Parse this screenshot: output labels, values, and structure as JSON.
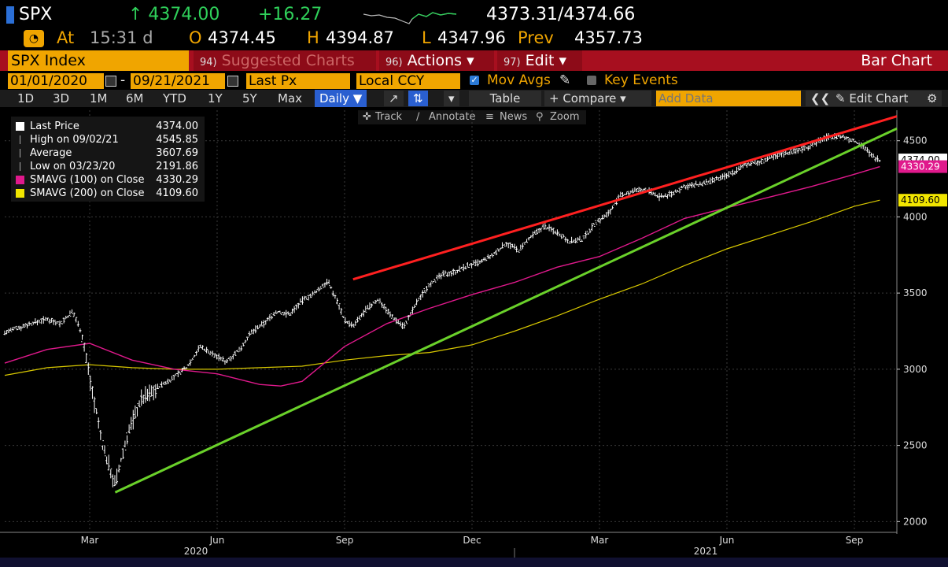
{
  "ticker": {
    "symbol": "SPX",
    "last": "↑ 4374.00",
    "change": "+16.27",
    "bid_ask": "4373.31/4374.66"
  },
  "quote": {
    "at_label": "At",
    "time": "15:31 d",
    "open_label": "O",
    "open": "4374.45",
    "high_label": "H",
    "high": "4394.87",
    "low_label": "L",
    "low": "4347.96",
    "prev_label": "Prev",
    "prev": "4357.73"
  },
  "menu": {
    "index": "SPX Index",
    "suggested_num": "94)",
    "suggested": "Suggested Charts",
    "actions_num": "96)",
    "actions": "Actions ▾",
    "edit_num": "97)",
    "edit": "Edit ▾",
    "title": "Bar Chart"
  },
  "settings": {
    "start_date": "01/01/2020",
    "dash": "-",
    "end_date": "09/21/2021",
    "field": "Last Px",
    "currency": "Local CCY",
    "mov_avgs": "Mov Avgs",
    "key_events": "Key Events"
  },
  "toolbar": {
    "periods": [
      "1D",
      "3D",
      "1M",
      "6M",
      "YTD",
      "1Y",
      "5Y",
      "Max"
    ],
    "frequency": "Daily ▼",
    "table": "Table",
    "compare": "+ Compare ▾",
    "add_data_placeholder": "Add Data",
    "edit_chart": "Edit Chart"
  },
  "tools": {
    "track": "Track",
    "annotate": "Annotate",
    "news": "News",
    "zoom": "Zoom"
  },
  "legend": [
    {
      "name": "Last Price",
      "value": "4374.00",
      "color": "#ffffff"
    },
    {
      "name": "High on 09/02/21",
      "value": "4545.85",
      "color": "#aaaaaa"
    },
    {
      "name": "Average",
      "value": "3607.69",
      "color": "#aaaaaa"
    },
    {
      "name": "Low on 03/23/20",
      "value": "2191.86",
      "color": "#aaaaaa"
    },
    {
      "name": "SMAVG (100)  on Close",
      "value": "4330.29",
      "color": "#e0198c"
    },
    {
      "name": "SMAVG (200)  on Close",
      "value": "4109.60",
      "color": "#f2e600"
    }
  ],
  "chart_data": {
    "type": "bar",
    "y_ticks": [
      2000,
      2500,
      3000,
      3500,
      4000,
      4500
    ],
    "y_tick_labels": [
      "2000",
      "2500",
      "3000",
      "3500",
      "4000",
      "4500"
    ],
    "ylim": [
      1950,
      4700
    ],
    "x_month_labels": [
      "Mar",
      "Jun",
      "Sep",
      "Dec",
      "Mar",
      "Jun",
      "Sep"
    ],
    "x_month_index": [
      2,
      5,
      8,
      11,
      14,
      17,
      20
    ],
    "x_year_labels": [
      "2020",
      "2021"
    ],
    "x_year_center": [
      4.5,
      16.5
    ],
    "xlim": [
      0,
      21
    ],
    "price_labels": [
      {
        "value": "4374.00",
        "y": 4374,
        "bg": "#ffffff",
        "fg": "#000000"
      },
      {
        "value": "4330.29",
        "y": 4330,
        "bg": "#e0198c",
        "fg": "#ffffff"
      },
      {
        "value": "4109.60",
        "y": 4109.6,
        "bg": "#f2e600",
        "fg": "#000000"
      }
    ],
    "price_series": {
      "name": "Last Price",
      "x": [
        0,
        0.5,
        1,
        1.3,
        1.6,
        1.8,
        2.0,
        2.3,
        2.6,
        2.9,
        3.2,
        3.6,
        4.0,
        4.3,
        4.6,
        4.9,
        5.2,
        5.5,
        5.8,
        6.1,
        6.4,
        6.7,
        7.0,
        7.3,
        7.6,
        7.9,
        8.0,
        8.2,
        8.5,
        8.8,
        9.1,
        9.4,
        9.7,
        10.0,
        10.3,
        10.6,
        10.9,
        11.2,
        11.5,
        11.8,
        12.1,
        12.4,
        12.7,
        13.0,
        13.3,
        13.6,
        13.9,
        14.2,
        14.5,
        14.8,
        15.1,
        15.4,
        15.7,
        16.0,
        16.3,
        16.6,
        16.9,
        17.2,
        17.5,
        17.8,
        18.1,
        18.4,
        18.7,
        19.0,
        19.3,
        19.6,
        19.9,
        20.2,
        20.4,
        20.6
      ],
      "y": [
        3240,
        3290,
        3330,
        3300,
        3380,
        3250,
        2950,
        2500,
        2240,
        2580,
        2800,
        2880,
        2950,
        3020,
        3150,
        3100,
        3050,
        3120,
        3240,
        3300,
        3380,
        3360,
        3450,
        3500,
        3580,
        3400,
        3320,
        3280,
        3390,
        3460,
        3350,
        3280,
        3440,
        3560,
        3620,
        3640,
        3680,
        3700,
        3750,
        3830,
        3780,
        3870,
        3940,
        3900,
        3840,
        3850,
        3960,
        4020,
        4140,
        4170,
        4180,
        4130,
        4150,
        4200,
        4210,
        4230,
        4260,
        4300,
        4350,
        4360,
        4400,
        4420,
        4440,
        4470,
        4520,
        4530,
        4510,
        4470,
        4400,
        4374
      ]
    },
    "sma100": {
      "name": "SMAVG (100) on Close",
      "x": [
        0,
        1,
        2,
        3,
        4,
        5,
        6,
        6.5,
        7,
        8,
        9,
        10,
        11,
        12,
        13,
        14,
        15,
        16,
        17,
        18,
        19,
        20,
        20.6
      ],
      "y": [
        3040,
        3130,
        3170,
        3060,
        3000,
        2970,
        2900,
        2890,
        2920,
        3150,
        3300,
        3400,
        3490,
        3570,
        3670,
        3740,
        3860,
        3990,
        4060,
        4130,
        4200,
        4280,
        4330
      ]
    },
    "sma200": {
      "name": "SMAVG (200) on Close",
      "x": [
        0,
        1,
        2,
        3,
        4,
        5,
        6,
        7,
        8,
        9,
        10,
        11,
        12,
        13,
        14,
        15,
        16,
        17,
        18,
        19,
        20,
        20.6
      ],
      "y": [
        2960,
        3010,
        3030,
        3010,
        3000,
        3000,
        3010,
        3020,
        3060,
        3090,
        3110,
        3160,
        3250,
        3350,
        3460,
        3560,
        3680,
        3790,
        3880,
        3970,
        4070,
        4109.6
      ]
    },
    "trendlines": [
      {
        "color": "#ff2020",
        "x": [
          8.2,
          21
        ],
        "y": [
          3590,
          4660
        ]
      },
      {
        "color": "#6ad12a",
        "x": [
          2.6,
          21
        ],
        "y": [
          2191.86,
          4580
        ]
      }
    ]
  }
}
